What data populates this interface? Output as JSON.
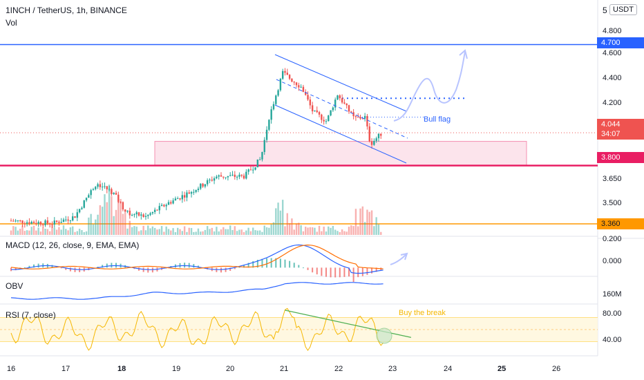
{
  "header": {
    "symbol_line": "1INCH / TetherUS, 1h, BINANCE",
    "vol_label": "Vol",
    "currency": "USDT",
    "currency_prefix": "5"
  },
  "indicators": {
    "macd_label": "MACD (12, 26, close, 9, EMA, EMA)",
    "obv_label": "OBV",
    "rsi_label": "RSI (7, close)"
  },
  "annotations": {
    "bull_flag": "Bull flag",
    "buy_the_break": "Buy the break"
  },
  "colors": {
    "up": "#26a69a",
    "down": "#ef5350",
    "blue_line": "#2962ff",
    "pink_line": "#e91e63",
    "orange_line": "#ff9800",
    "zone_fill": "#fce4ec",
    "channel": "#2962ff",
    "rsi": "#f5b700",
    "rsi_trend": "#4caf50",
    "macd_line": "#2962ff",
    "signal_line": "#ff6d00",
    "obv_line": "#2962ff",
    "sketch": "#b8c4ff"
  },
  "price_axis": {
    "labels": [
      "4.800",
      "4.600",
      "4.400",
      "4.200",
      "3.650",
      "3.500"
    ],
    "tags": [
      {
        "label": "4.700",
        "color": "#2962ff"
      },
      {
        "label": "4.044",
        "color": "#ef5350"
      },
      {
        "label": "34:07",
        "color": "#ef5350"
      },
      {
        "label": "3.800",
        "color": "#e91e63"
      },
      {
        "label": "3.360",
        "color": "#ff9800"
      }
    ],
    "macd_labels": [
      "0.200",
      "0.000"
    ],
    "obv_labels": [
      "160M"
    ],
    "rsi_labels": [
      "80.00",
      "40.00"
    ]
  },
  "time_axis": {
    "labels": [
      "16",
      "17",
      "18",
      "19",
      "20",
      "21",
      "22",
      "23",
      "24",
      "25",
      "26"
    ],
    "bold": [
      "18",
      "25"
    ]
  },
  "chart_data": {
    "type": "candlestick",
    "title": "1INCH / TetherUS, 1h, BINANCE",
    "currency": "USDT",
    "x_range": [
      16,
      26
    ],
    "y_range_visible": [
      3.3,
      4.85
    ],
    "horizontal_levels": [
      {
        "value": 4.7,
        "role": "resistance",
        "color": "#2962ff"
      },
      {
        "value": 3.8,
        "role": "support",
        "color": "#e91e63"
      },
      {
        "value": 3.36,
        "role": "support",
        "color": "#ff9800"
      },
      {
        "value": 4.3,
        "role": "flag high",
        "color": "#2962ff",
        "style": "dotted"
      }
    ],
    "last_price": 4.044,
    "countdown": "34:07",
    "support_zone": {
      "low": 3.8,
      "high": 3.98
    },
    "price_path_keypoints": [
      {
        "x": 16.0,
        "y": 3.39
      },
      {
        "x": 16.8,
        "y": 3.37
      },
      {
        "x": 17.2,
        "y": 3.42
      },
      {
        "x": 17.6,
        "y": 3.67
      },
      {
        "x": 17.9,
        "y": 3.6
      },
      {
        "x": 18.15,
        "y": 3.45
      },
      {
        "x": 18.5,
        "y": 3.42
      },
      {
        "x": 18.9,
        "y": 3.52
      },
      {
        "x": 19.3,
        "y": 3.6
      },
      {
        "x": 19.8,
        "y": 3.72
      },
      {
        "x": 20.3,
        "y": 3.72
      },
      {
        "x": 20.6,
        "y": 3.85
      },
      {
        "x": 20.75,
        "y": 4.16
      },
      {
        "x": 21.0,
        "y": 4.49
      },
      {
        "x": 21.35,
        "y": 4.38
      },
      {
        "x": 21.55,
        "y": 4.2
      },
      {
        "x": 21.8,
        "y": 4.13
      },
      {
        "x": 22.0,
        "y": 4.33
      },
      {
        "x": 22.3,
        "y": 4.15
      },
      {
        "x": 22.5,
        "y": 4.16
      },
      {
        "x": 22.6,
        "y": 3.96
      },
      {
        "x": 22.8,
        "y": 4.04
      }
    ],
    "volume_spike_days": [
      17.85,
      21.0,
      22.45
    ],
    "macd": {
      "range": [
        -0.05,
        0.22
      ],
      "peak_day": 21.2,
      "peak_value": 0.18
    },
    "rsi": {
      "range": [
        20,
        100
      ],
      "band": [
        40,
        80
      ],
      "trendline_start": {
        "x": 21.0,
        "y": 92
      },
      "trendline_end": {
        "x": 23.3,
        "y": 47
      }
    }
  }
}
